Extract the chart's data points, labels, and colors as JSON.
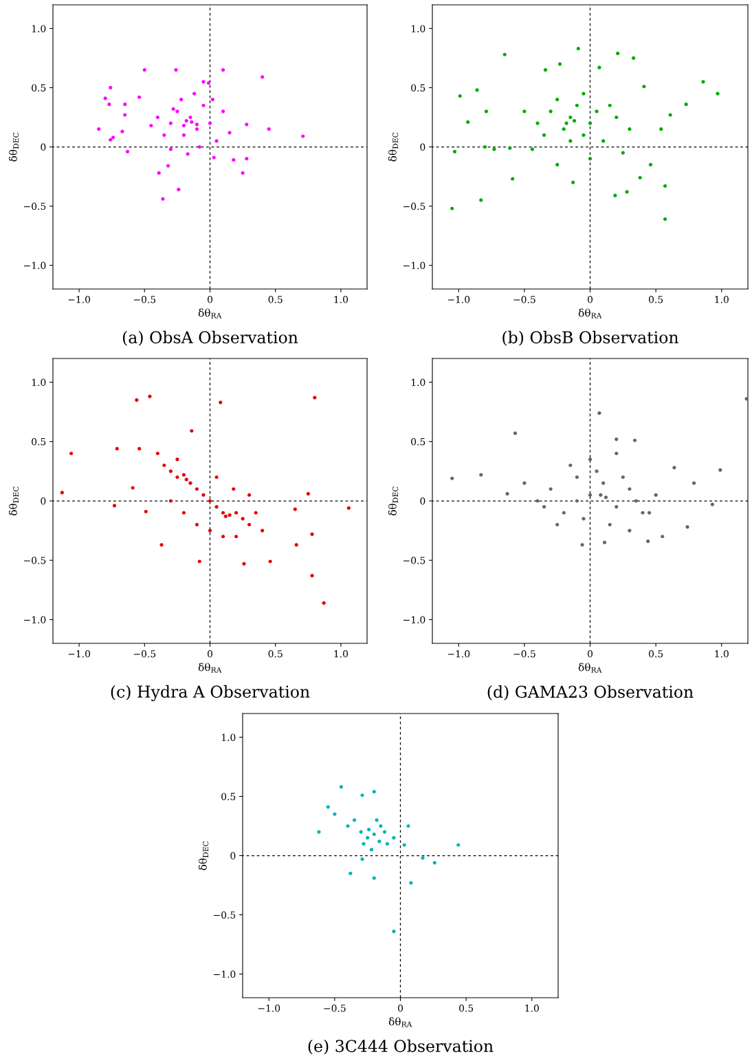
{
  "chart_data": [
    {
      "type": "scatter",
      "title": "(a) ObsA Observation",
      "xlabel": "δθ$_{RA}$",
      "ylabel": "δθ$_{DEC}$",
      "marker": "circle",
      "xlim": [
        -1.2,
        1.2
      ],
      "ylim": [
        -1.2,
        1.2
      ],
      "xticks": [
        {
          "value": -1.0,
          "label": "−1.0"
        },
        {
          "value": -0.5,
          "label": "−0.5"
        },
        0,
        0.5,
        {
          "value": 1,
          "label": "1.0"
        }
      ],
      "yticks": [
        {
          "value": -1.0,
          "label": "−1.0"
        },
        {
          "value": -0.5,
          "label": "−0.5"
        },
        0,
        0.5,
        {
          "value": 1,
          "label": "1.0"
        }
      ],
      "ref_lines": [
        {
          "axis": "x",
          "value": 0,
          "color": "#000000",
          "line_style": "dashed"
        },
        {
          "axis": "y",
          "value": 0,
          "color": "#000000",
          "line_style": "dashed"
        }
      ],
      "series": [
        {
          "color": "#ff00ff",
          "x": [
            -0.85,
            -0.8,
            -0.76,
            -0.77,
            -0.76,
            -0.74,
            -0.67,
            -0.65,
            -0.65,
            -0.63,
            -0.5,
            -0.26,
            -0.36,
            -0.24,
            0.1,
            0.4,
            0.45,
            0.71,
            0.25,
            0.18,
            0.28,
            0.28,
            -0.05,
            -0.01,
            -0.54,
            -0.39,
            -0.17,
            0.03,
            -0.32,
            -0.3,
            -0.25,
            -0.2,
            -0.15,
            -0.1,
            -0.05,
            0,
            0.05,
            0.1,
            -0.35,
            -0.4,
            -0.22,
            -0.12,
            -0.08,
            -0.18,
            -0.28,
            0.02,
            -0.45,
            0.15,
            -0.3,
            -0.14,
            -0.1,
            -0.2
          ],
          "values": [
            0.15,
            0.41,
            0.5,
            0.36,
            0.06,
            0.08,
            0.13,
            0.36,
            0.27,
            -0.04,
            0.65,
            0.65,
            -0.44,
            -0.36,
            0.65,
            0.59,
            0.15,
            0.09,
            -0.22,
            -0.11,
            -0.1,
            0.19,
            0.55,
            0.54,
            0.42,
            -0.22,
            -0.06,
            -0.09,
            -0.16,
            0.2,
            0.3,
            0.1,
            0.25,
            0.15,
            0.35,
            0.2,
            0.05,
            0.3,
            0.1,
            0.25,
            0.4,
            0.45,
            0.0,
            0.22,
            0.32,
            0.4,
            0.18,
            0.12,
            -0.02,
            0.21,
            0.19,
            0.18
          ]
        }
      ]
    },
    {
      "type": "scatter",
      "title": "(b) ObsB Observation",
      "xlabel": "δθ$_{RA}$",
      "ylabel": "δθ$_{DEC}$",
      "marker": "circle",
      "xlim": [
        -1.2,
        1.2
      ],
      "ylim": [
        -1.2,
        1.2
      ],
      "xticks": [
        {
          "value": -1.0,
          "label": "−1.0"
        },
        {
          "value": -0.5,
          "label": "−0.5"
        },
        0,
        0.5,
        {
          "value": 1,
          "label": "1.0"
        }
      ],
      "yticks": [
        {
          "value": -1.0,
          "label": "−1.0"
        },
        {
          "value": -0.5,
          "label": "−0.5"
        },
        0,
        0.5,
        {
          "value": 1,
          "label": "1.0"
        }
      ],
      "ref_lines": [
        {
          "axis": "x",
          "value": 0,
          "color": "#000000",
          "line_style": "dashed"
        },
        {
          "axis": "y",
          "value": 0,
          "color": "#000000",
          "line_style": "dashed"
        }
      ],
      "series": [
        {
          "color": "#00aa00",
          "x": [
            -1.05,
            -1.03,
            -0.99,
            -0.93,
            -0.86,
            -0.8,
            -0.79,
            -0.83,
            -0.59,
            -0.65,
            -0.34,
            -0.23,
            -0.09,
            0.07,
            0.21,
            0.33,
            0.41,
            0.57,
            0.57,
            0.86,
            0.97,
            0.73,
            0.61,
            0.54,
            0.46,
            0.19,
            0.28,
            0.38,
            -0.13,
            -0.25,
            -0.44,
            -0.73,
            -0.61,
            -0.4,
            -0.3,
            -0.2,
            -0.15,
            -0.1,
            -0.05,
            0,
            0.05,
            0.1,
            0.2,
            0.3,
            -0.25,
            -0.15,
            -0.05,
            0.15,
            -0.35,
            -0.5,
            0.25,
            -0.12,
            -0.18,
            0.0
          ],
          "values": [
            -0.52,
            -0.04,
            0.43,
            0.21,
            0.48,
            0.0,
            0.3,
            -0.45,
            -0.27,
            0.78,
            0.65,
            0.7,
            0.83,
            0.67,
            0.79,
            0.75,
            0.51,
            -0.33,
            -0.61,
            0.55,
            0.45,
            0.36,
            0.27,
            0.15,
            -0.15,
            -0.41,
            -0.38,
            -0.26,
            -0.3,
            -0.15,
            -0.02,
            -0.02,
            -0.01,
            0.2,
            0.3,
            0.15,
            0.25,
            0.35,
            0.1,
            0.2,
            0.3,
            0.05,
            0.25,
            0.15,
            0.4,
            0.05,
            0.45,
            0.35,
            0.1,
            0.3,
            -0.05,
            0.22,
            0.2,
            -0.1
          ]
        }
      ]
    },
    {
      "type": "scatter",
      "title": "(c) Hydra A Observation",
      "xlabel": "δθ$_{RA}$",
      "ylabel": "δθ$_{DEC}$",
      "marker": "circle",
      "xlim": [
        -1.2,
        1.2
      ],
      "ylim": [
        -1.2,
        1.2
      ],
      "xticks": [
        {
          "value": -1.0,
          "label": "−1.0"
        },
        {
          "value": -0.5,
          "label": "−0.5"
        },
        0,
        0.5,
        {
          "value": 1,
          "label": "1.0"
        }
      ],
      "yticks": [
        {
          "value": -1.0,
          "label": "−1.0"
        },
        {
          "value": -0.5,
          "label": "−0.5"
        },
        0,
        0.5,
        {
          "value": 1,
          "label": "1.0"
        }
      ],
      "ref_lines": [
        {
          "axis": "x",
          "value": 0,
          "color": "#000000",
          "line_style": "dashed"
        },
        {
          "axis": "y",
          "value": 0,
          "color": "#000000",
          "line_style": "dashed"
        }
      ],
      "series": [
        {
          "color": "#e60000",
          "x": [
            -1.13,
            -1.06,
            -0.73,
            -0.71,
            -0.56,
            -0.46,
            -0.54,
            -0.59,
            -0.49,
            0.08,
            0.8,
            1.06,
            0.87,
            0.78,
            0.78,
            0.75,
            0.65,
            0.66,
            0.46,
            0.26,
            -0.08,
            -0.37,
            -0.14,
            -0.35,
            -0.3,
            -0.25,
            -0.2,
            -0.15,
            -0.1,
            -0.05,
            0,
            0.05,
            0.1,
            0.15,
            0.2,
            0.25,
            0.3,
            0.35,
            0.4,
            -0.3,
            -0.2,
            -0.1,
            0,
            0.1,
            0.2,
            0.3,
            -0.4,
            -0.25,
            0.05,
            0.18,
            -0.18,
            0.12
          ],
          "values": [
            0.07,
            0.4,
            -0.04,
            0.44,
            0.85,
            0.88,
            0.44,
            0.11,
            -0.09,
            0.83,
            0.87,
            -0.06,
            -0.86,
            -0.63,
            -0.28,
            0.06,
            -0.07,
            -0.37,
            -0.51,
            -0.53,
            -0.51,
            -0.37,
            0.59,
            0.3,
            0.25,
            0.2,
            0.22,
            0.15,
            0.1,
            0.05,
            0.0,
            -0.05,
            -0.1,
            -0.12,
            -0.1,
            -0.15,
            -0.2,
            -0.1,
            -0.25,
            0.0,
            -0.1,
            -0.2,
            -0.25,
            -0.3,
            -0.3,
            0.05,
            0.4,
            0.35,
            0.2,
            0.1,
            0.18,
            -0.13
          ]
        }
      ]
    },
    {
      "type": "scatter",
      "title": "(d) GAMA23 Observation",
      "xlabel": "δθ$_{RA}$",
      "ylabel": "δθ$_{DEC}$",
      "marker": "circle",
      "xlim": [
        -1.2,
        1.2
      ],
      "ylim": [
        -1.2,
        1.2
      ],
      "xticks": [
        {
          "value": -1.0,
          "label": "−1.0"
        },
        {
          "value": -0.5,
          "label": "−0.5"
        },
        0,
        0.5,
        {
          "value": 1,
          "label": "1.0"
        }
      ],
      "yticks": [
        {
          "value": -1.0,
          "label": "−1.0"
        },
        {
          "value": -0.5,
          "label": "−0.5"
        },
        0,
        0.5,
        {
          "value": 1,
          "label": "1.0"
        }
      ],
      "ref_lines": [
        {
          "axis": "x",
          "value": 0,
          "color": "#000000",
          "line_style": "dashed"
        },
        {
          "axis": "y",
          "value": 0,
          "color": "#000000",
          "line_style": "dashed"
        }
      ],
      "series": [
        {
          "color": "#666666",
          "x": [
            -1.05,
            -0.57,
            -0.83,
            -0.63,
            -0.5,
            1.19,
            0.99,
            0.93,
            0.74,
            0.07,
            0.2,
            0.34,
            -0.06,
            0.11,
            0.44,
            0.55,
            0.64,
            0.79,
            -0.4,
            -0.3,
            -0.2,
            -0.1,
            0,
            0.1,
            0.2,
            0.3,
            0.4,
            0.5,
            -0.25,
            -0.15,
            -0.05,
            0.05,
            0.15,
            0.25,
            0.35,
            0.45,
            -0.35,
            0.0,
            0.12,
            0.08,
            0.2,
            -0.1,
            0.3
          ],
          "values": [
            0.19,
            0.57,
            0.22,
            0.06,
            0.15,
            0.86,
            0.26,
            -0.03,
            -0.22,
            0.74,
            0.52,
            0.51,
            -0.37,
            -0.35,
            -0.34,
            -0.3,
            0.28,
            0.15,
            0.0,
            0.1,
            -0.1,
            0.2,
            0.05,
            0.15,
            -0.05,
            0.1,
            -0.1,
            0.05,
            -0.2,
            0.3,
            -0.15,
            0.25,
            -0.2,
            0.2,
            0.0,
            -0.1,
            -0.05,
            0.35,
            0.03,
            0.05,
            0.4,
            0.0,
            -0.25
          ]
        }
      ]
    },
    {
      "type": "scatter",
      "title": "(e) 3C444 Observation",
      "xlabel": "δθ$_{RA}$",
      "ylabel": "δθ$_{DEC}$",
      "marker": "circle",
      "xlim": [
        -1.2,
        1.2
      ],
      "ylim": [
        -1.2,
        1.2
      ],
      "xticks": [
        {
          "value": -1.0,
          "label": "−1.0"
        },
        {
          "value": -0.5,
          "label": "−0.5"
        },
        0,
        0.5,
        {
          "value": 1,
          "label": "1.0"
        }
      ],
      "yticks": [
        {
          "value": -1.0,
          "label": "−1.0"
        },
        {
          "value": -0.5,
          "label": "−0.5"
        },
        0,
        0.5,
        {
          "value": 1,
          "label": "1.0"
        }
      ],
      "ref_lines": [
        {
          "axis": "x",
          "value": 0,
          "color": "#000000",
          "line_style": "dashed"
        },
        {
          "axis": "y",
          "value": 0,
          "color": "#000000",
          "line_style": "dashed"
        }
      ],
      "series": [
        {
          "color": "#00b3b3",
          "x": [
            -0.62,
            -0.55,
            -0.45,
            -0.29,
            -0.2,
            -0.05,
            0.44,
            0.26,
            0.08,
            -0.2,
            -0.38,
            -0.29,
            0.17,
            0.06,
            0.03,
            -0.3,
            -0.25,
            -0.2,
            -0.15,
            -0.1,
            -0.35,
            -0.22,
            -0.18,
            -0.12,
            -0.28,
            -0.4,
            -0.05,
            -0.16,
            -0.24,
            -0.5
          ],
          "values": [
            0.2,
            0.41,
            0.58,
            0.51,
            0.54,
            -0.64,
            0.09,
            -0.06,
            -0.23,
            -0.19,
            -0.15,
            -0.03,
            -0.02,
            0.25,
            0.09,
            0.2,
            0.15,
            0.18,
            0.25,
            0.1,
            0.3,
            0.05,
            0.3,
            0.2,
            0.1,
            0.25,
            0.15,
            0.12,
            0.22,
            0.35
          ]
        }
      ]
    }
  ]
}
